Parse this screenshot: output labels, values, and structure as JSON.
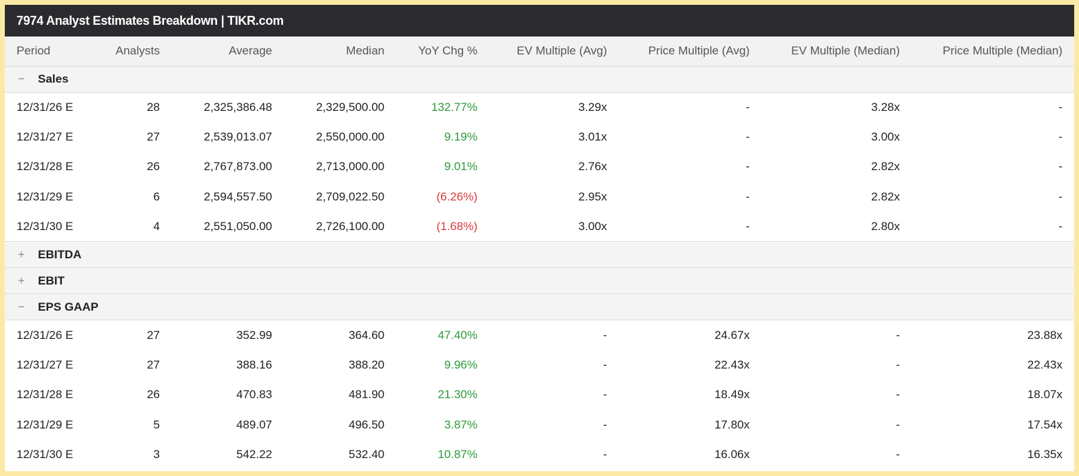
{
  "title": "7974 Analyst Estimates Breakdown | TIKR.com",
  "columns": [
    "Period",
    "Analysts",
    "Average",
    "Median",
    "YoY Chg %",
    "EV Multiple (Avg)",
    "Price Multiple (Avg)",
    "EV Multiple (Median)",
    "Price Multiple (Median)"
  ],
  "colors": {
    "positive": "#2e9a3c",
    "negative": "#d93c3c",
    "titlebar": "#2b2b2f",
    "border": "#fce9a6"
  },
  "sections": [
    {
      "name": "Sales",
      "expanded": true,
      "toggle": "−",
      "rows": [
        {
          "period": "12/31/26 E",
          "analysts": "28",
          "average": "2,325,386.48",
          "median": "2,329,500.00",
          "yoy": "132.77%",
          "yoy_sign": "pos",
          "ev_avg": "3.29x",
          "price_avg": "-",
          "ev_median": "3.28x",
          "price_median": "-"
        },
        {
          "period": "12/31/27 E",
          "analysts": "27",
          "average": "2,539,013.07",
          "median": "2,550,000.00",
          "yoy": "9.19%",
          "yoy_sign": "pos",
          "ev_avg": "3.01x",
          "price_avg": "-",
          "ev_median": "3.00x",
          "price_median": "-"
        },
        {
          "period": "12/31/28 E",
          "analysts": "26",
          "average": "2,767,873.00",
          "median": "2,713,000.00",
          "yoy": "9.01%",
          "yoy_sign": "pos",
          "ev_avg": "2.76x",
          "price_avg": "-",
          "ev_median": "2.82x",
          "price_median": "-"
        },
        {
          "period": "12/31/29 E",
          "analysts": "6",
          "average": "2,594,557.50",
          "median": "2,709,022.50",
          "yoy": "(6.26%)",
          "yoy_sign": "neg",
          "ev_avg": "2.95x",
          "price_avg": "-",
          "ev_median": "2.82x",
          "price_median": "-"
        },
        {
          "period": "12/31/30 E",
          "analysts": "4",
          "average": "2,551,050.00",
          "median": "2,726,100.00",
          "yoy": "(1.68%)",
          "yoy_sign": "neg",
          "ev_avg": "3.00x",
          "price_avg": "-",
          "ev_median": "2.80x",
          "price_median": "-"
        }
      ]
    },
    {
      "name": "EBITDA",
      "expanded": false,
      "toggle": "+",
      "rows": []
    },
    {
      "name": "EBIT",
      "expanded": false,
      "toggle": "+",
      "rows": []
    },
    {
      "name": "EPS GAAP",
      "expanded": true,
      "toggle": "−",
      "rows": [
        {
          "period": "12/31/26 E",
          "analysts": "27",
          "average": "352.99",
          "median": "364.60",
          "yoy": "47.40%",
          "yoy_sign": "pos",
          "ev_avg": "-",
          "price_avg": "24.67x",
          "ev_median": "-",
          "price_median": "23.88x"
        },
        {
          "period": "12/31/27 E",
          "analysts": "27",
          "average": "388.16",
          "median": "388.20",
          "yoy": "9.96%",
          "yoy_sign": "pos",
          "ev_avg": "-",
          "price_avg": "22.43x",
          "ev_median": "-",
          "price_median": "22.43x"
        },
        {
          "period": "12/31/28 E",
          "analysts": "26",
          "average": "470.83",
          "median": "481.90",
          "yoy": "21.30%",
          "yoy_sign": "pos",
          "ev_avg": "-",
          "price_avg": "18.49x",
          "ev_median": "-",
          "price_median": "18.07x"
        },
        {
          "period": "12/31/29 E",
          "analysts": "5",
          "average": "489.07",
          "median": "496.50",
          "yoy": "3.87%",
          "yoy_sign": "pos",
          "ev_avg": "-",
          "price_avg": "17.80x",
          "ev_median": "-",
          "price_median": "17.54x"
        },
        {
          "period": "12/31/30 E",
          "analysts": "3",
          "average": "542.22",
          "median": "532.40",
          "yoy": "10.87%",
          "yoy_sign": "pos",
          "ev_avg": "-",
          "price_avg": "16.06x",
          "ev_median": "-",
          "price_median": "16.35x"
        }
      ]
    }
  ]
}
